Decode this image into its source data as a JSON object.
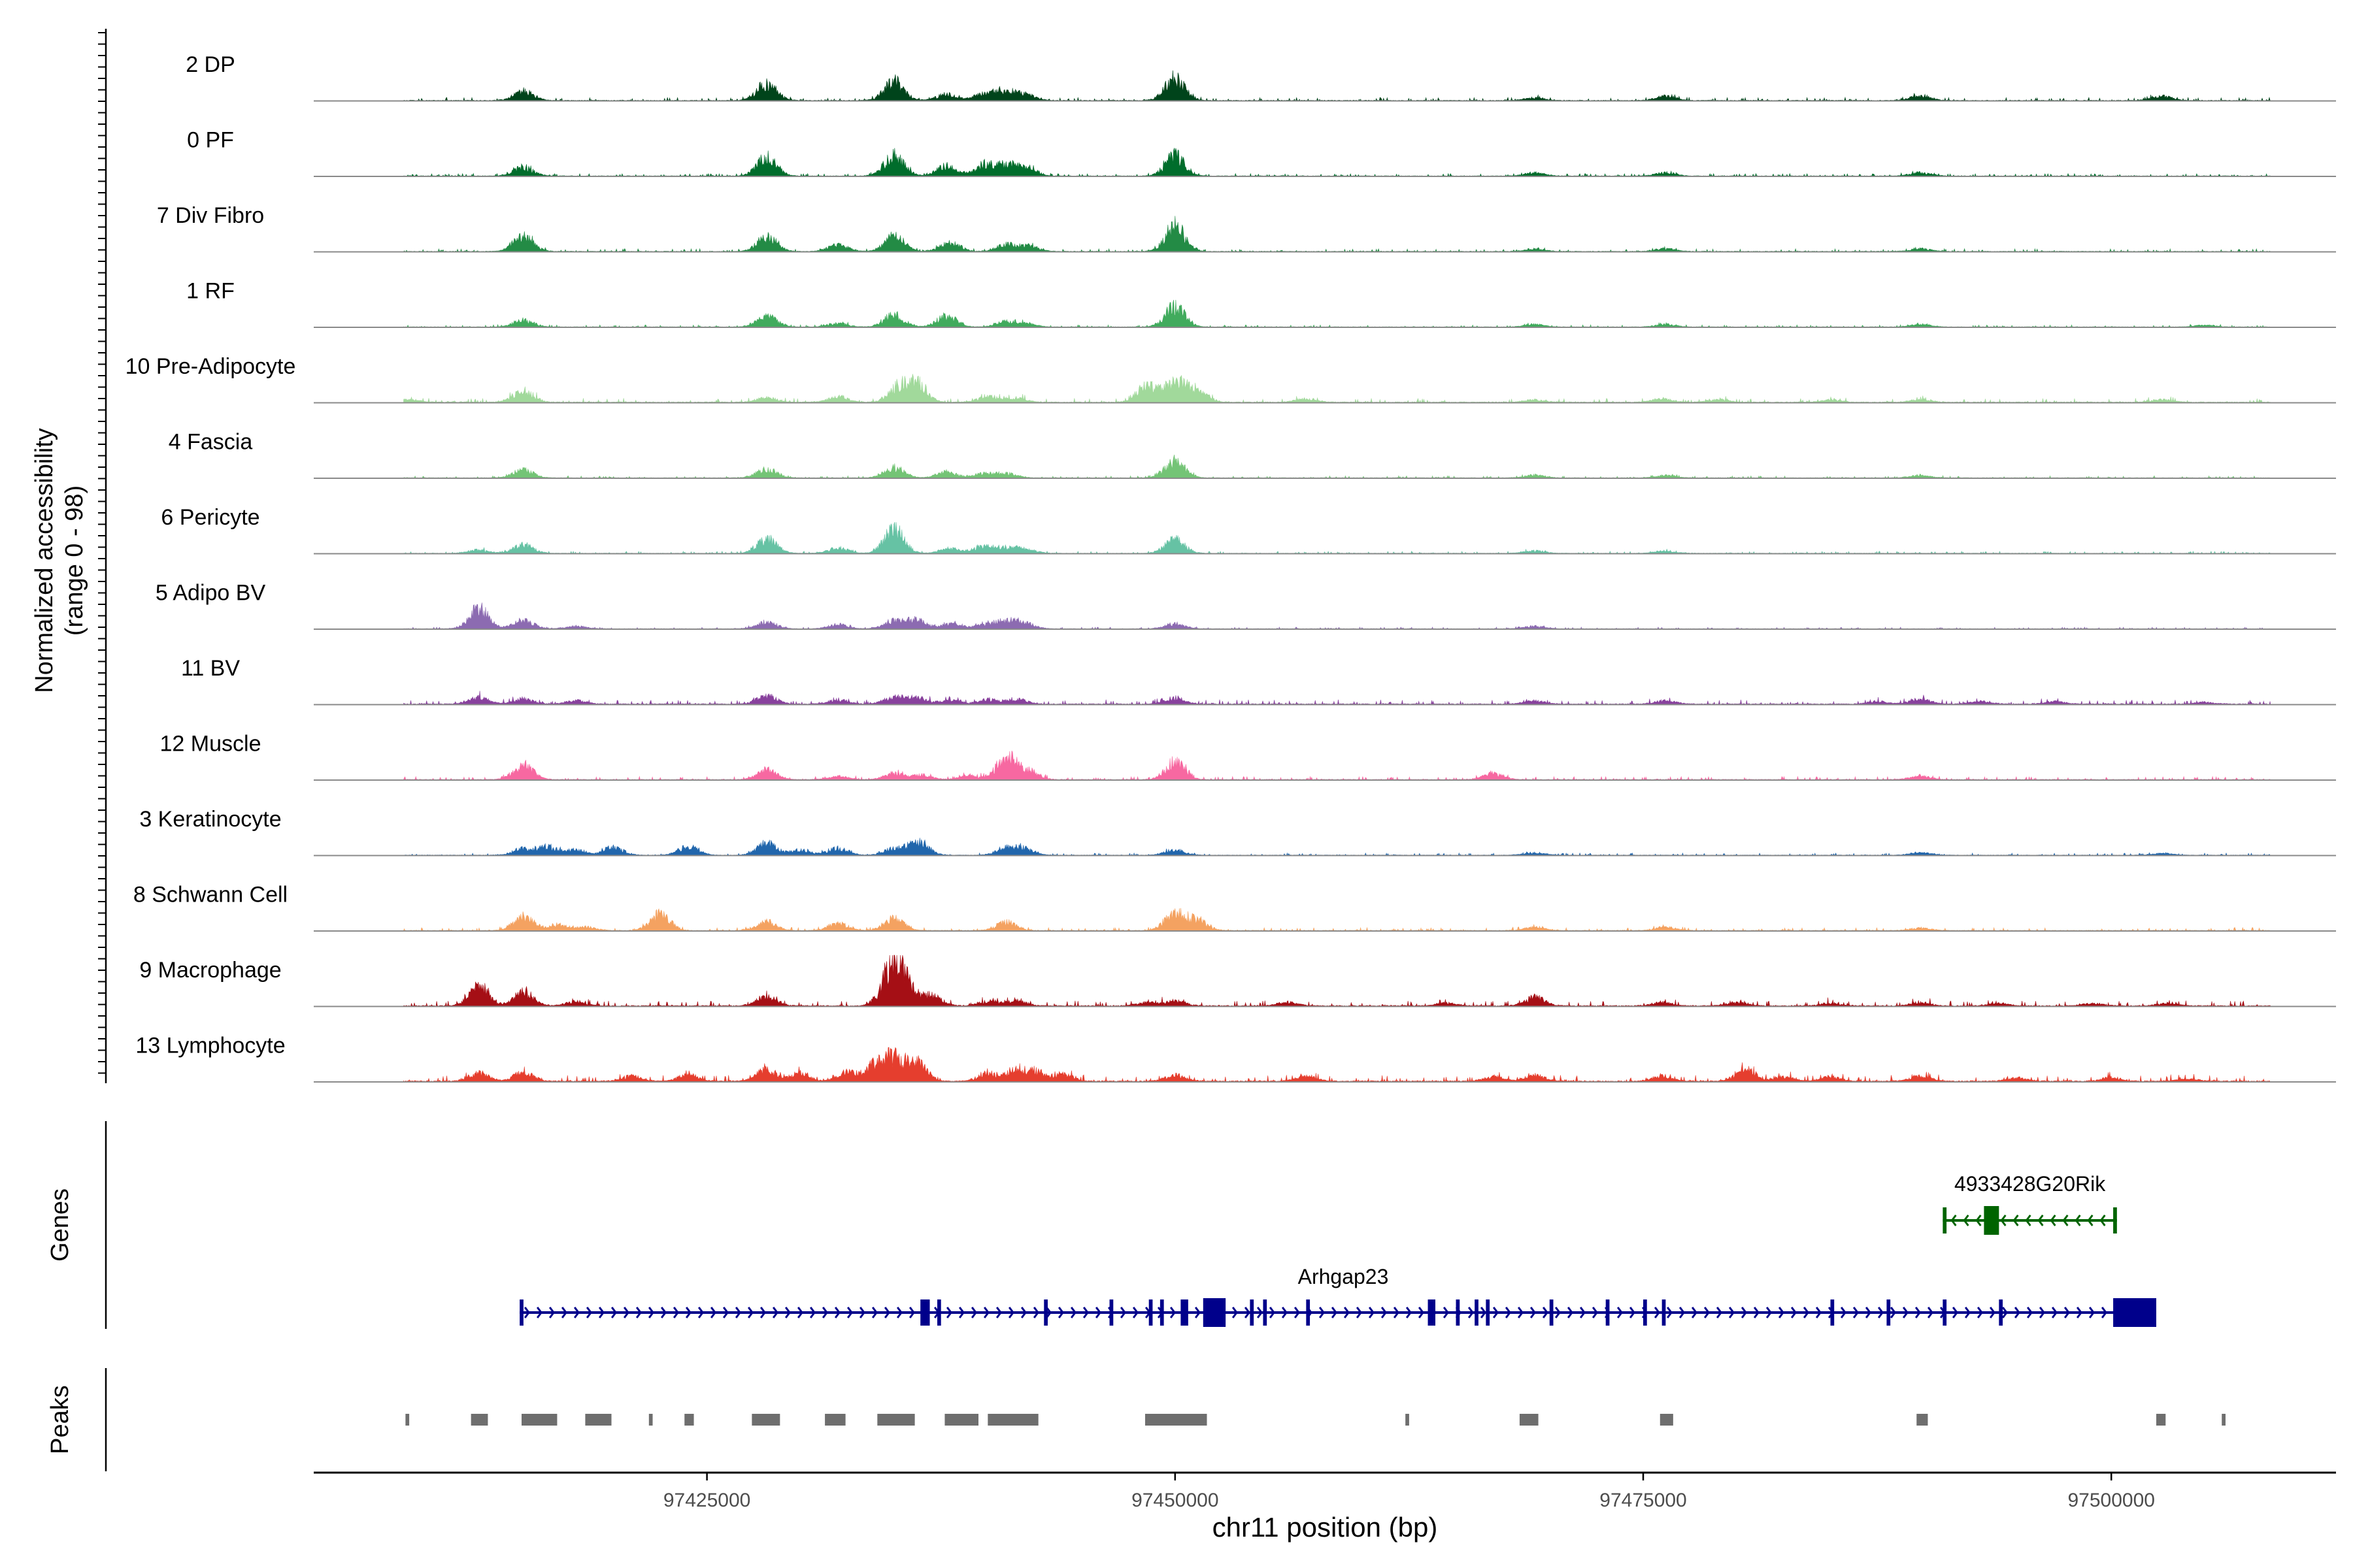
{
  "chart_data": {
    "type": "area",
    "title": "",
    "xlabel": "chr11 position (bp)",
    "ylabel": "Normalized accessibility",
    "ylabel_range": "(range 0 - 98)",
    "xlim": [
      97404000,
      97512000
    ],
    "ylim": [
      0,
      98
    ],
    "xticks": [
      97425000,
      97450000,
      97475000,
      97500000
    ],
    "xtick_labels": [
      "97425000",
      "97450000",
      "97475000",
      "97500000"
    ],
    "genes_label": "Genes",
    "peaks_label": "Peaks",
    "tracks": [
      {
        "name": "2 DP",
        "color": "#00441b",
        "noise": 1.5,
        "seed": 11,
        "peaks": [
          [
            97415200,
            11
          ],
          [
            97428200,
            20
          ],
          [
            97435000,
            22
          ],
          [
            97437800,
            7
          ],
          [
            97439800,
            8
          ],
          [
            97441000,
            10
          ],
          [
            97442000,
            6
          ],
          [
            97450000,
            26
          ],
          [
            97469200,
            3
          ],
          [
            97476200,
            5
          ],
          [
            97489800,
            6
          ],
          [
            97502700,
            5
          ]
        ]
      },
      {
        "name": "0 PF",
        "color": "#006d2c",
        "noise": 1.2,
        "seed": 23,
        "peaks": [
          [
            97415200,
            10
          ],
          [
            97428200,
            22
          ],
          [
            97435000,
            24
          ],
          [
            97437800,
            12
          ],
          [
            97439800,
            12
          ],
          [
            97441000,
            12
          ],
          [
            97442000,
            10
          ],
          [
            97450000,
            24
          ],
          [
            97469200,
            4
          ],
          [
            97476200,
            4
          ],
          [
            97489800,
            4
          ]
        ]
      },
      {
        "name": "7 Div Fibro",
        "color": "#238b45",
        "noise": 1.3,
        "seed": 37,
        "peaks": [
          [
            97415200,
            18
          ],
          [
            97428200,
            17
          ],
          [
            97432000,
            8
          ],
          [
            97435000,
            18
          ],
          [
            97438000,
            10
          ],
          [
            97441000,
            8
          ],
          [
            97442200,
            6
          ],
          [
            97450000,
            30
          ],
          [
            97469200,
            3
          ],
          [
            97476200,
            3
          ],
          [
            97489800,
            3
          ]
        ]
      },
      {
        "name": "1 RF",
        "color": "#41ab5d",
        "noise": 1.0,
        "seed": 41,
        "peaks": [
          [
            97415200,
            8
          ],
          [
            97428200,
            12
          ],
          [
            97432000,
            4
          ],
          [
            97435000,
            14
          ],
          [
            97437800,
            13
          ],
          [
            97441000,
            6
          ],
          [
            97442000,
            4
          ],
          [
            97450000,
            24
          ],
          [
            97469200,
            3
          ],
          [
            97476200,
            3
          ],
          [
            97489800,
            3
          ],
          [
            97505000,
            2
          ]
        ]
      },
      {
        "name": "10 Pre-Adipocyte",
        "color": "#a1d99b",
        "noise": 2.0,
        "seed": 53,
        "peaks": [
          [
            97409000,
            4
          ],
          [
            97415200,
            14
          ],
          [
            97428200,
            5
          ],
          [
            97432000,
            6
          ],
          [
            97435200,
            18
          ],
          [
            97436200,
            22
          ],
          [
            97440000,
            7
          ],
          [
            97441500,
            5
          ],
          [
            97448500,
            20
          ],
          [
            97450000,
            24
          ],
          [
            97451200,
            14
          ],
          [
            97457000,
            4
          ],
          [
            97469200,
            3
          ],
          [
            97476000,
            4
          ],
          [
            97479000,
            3
          ],
          [
            97485000,
            3
          ],
          [
            97489800,
            3
          ],
          [
            97502700,
            3
          ]
        ]
      },
      {
        "name": "4 Fascia",
        "color": "#74c476",
        "noise": 1.0,
        "seed": 61,
        "peaks": [
          [
            97415200,
            9
          ],
          [
            97428200,
            10
          ],
          [
            97435000,
            12
          ],
          [
            97437800,
            7
          ],
          [
            97439800,
            5
          ],
          [
            97441000,
            5
          ],
          [
            97450000,
            20
          ],
          [
            97469200,
            3
          ],
          [
            97476200,
            3
          ],
          [
            97489800,
            3
          ]
        ]
      },
      {
        "name": "6 Pericyte",
        "color": "#66c2a4",
        "noise": 1.0,
        "seed": 71,
        "peaks": [
          [
            97412800,
            4
          ],
          [
            97415200,
            10
          ],
          [
            97428200,
            17
          ],
          [
            97432000,
            6
          ],
          [
            97435000,
            28
          ],
          [
            97438000,
            6
          ],
          [
            97439800,
            8
          ],
          [
            97441000,
            6
          ],
          [
            97442000,
            5
          ],
          [
            97450000,
            16
          ],
          [
            97469200,
            3
          ],
          [
            97476200,
            3
          ]
        ]
      },
      {
        "name": "5 Adipo BV",
        "color": "#8c6bb1",
        "noise": 0.8,
        "seed": 83,
        "peaks": [
          [
            97412800,
            24
          ],
          [
            97415200,
            10
          ],
          [
            97418000,
            3
          ],
          [
            97428200,
            8
          ],
          [
            97432000,
            5
          ],
          [
            97435000,
            10
          ],
          [
            97436200,
            10
          ],
          [
            97438000,
            6
          ],
          [
            97439800,
            6
          ],
          [
            97441000,
            9
          ],
          [
            97442000,
            6
          ],
          [
            97450000,
            6
          ],
          [
            97469200,
            3
          ]
        ]
      },
      {
        "name": "11 BV",
        "color": "#88419d",
        "noise": 2.2,
        "seed": 97,
        "peaks": [
          [
            97412800,
            8
          ],
          [
            97415200,
            6
          ],
          [
            97418000,
            4
          ],
          [
            97428200,
            10
          ],
          [
            97432000,
            5
          ],
          [
            97435000,
            8
          ],
          [
            97436200,
            7
          ],
          [
            97438000,
            5
          ],
          [
            97440000,
            5
          ],
          [
            97441500,
            6
          ],
          [
            97450000,
            7
          ],
          [
            97469200,
            4
          ],
          [
            97476200,
            4
          ],
          [
            97487500,
            3
          ],
          [
            97489800,
            6
          ],
          [
            97493000,
            3
          ],
          [
            97497000,
            3
          ],
          [
            97505000,
            2
          ]
        ]
      },
      {
        "name": "12 Muscle",
        "color": "#f768a1",
        "noise": 1.5,
        "seed": 103,
        "peaks": [
          [
            97415200,
            18
          ],
          [
            97428200,
            12
          ],
          [
            97432000,
            4
          ],
          [
            97435000,
            7
          ],
          [
            97436500,
            5
          ],
          [
            97439000,
            5
          ],
          [
            97441000,
            26
          ],
          [
            97442200,
            10
          ],
          [
            97450000,
            20
          ],
          [
            97467000,
            7
          ],
          [
            97489800,
            4
          ]
        ]
      },
      {
        "name": "3 Keratinocyte",
        "color": "#2166ac",
        "noise": 1.0,
        "seed": 113,
        "peaks": [
          [
            97415200,
            8
          ],
          [
            97416500,
            9
          ],
          [
            97418000,
            6
          ],
          [
            97420000,
            9
          ],
          [
            97424000,
            10
          ],
          [
            97428200,
            14
          ],
          [
            97430000,
            6
          ],
          [
            97432000,
            8
          ],
          [
            97435000,
            8
          ],
          [
            97436300,
            16
          ],
          [
            97441000,
            8
          ],
          [
            97442000,
            7
          ],
          [
            97450000,
            6
          ],
          [
            97469200,
            3
          ],
          [
            97489800,
            3
          ],
          [
            97502700,
            2
          ]
        ]
      },
      {
        "name": "8 Schwann Cell",
        "color": "#f4a261",
        "noise": 1.5,
        "seed": 127,
        "peaks": [
          [
            97415200,
            16
          ],
          [
            97417000,
            6
          ],
          [
            97418500,
            4
          ],
          [
            97422500,
            19
          ],
          [
            97428200,
            10
          ],
          [
            97432000,
            8
          ],
          [
            97435000,
            14
          ],
          [
            97441000,
            10
          ],
          [
            97450000,
            22
          ],
          [
            97451200,
            12
          ],
          [
            97469200,
            4
          ],
          [
            97476200,
            4
          ],
          [
            97489800,
            3
          ]
        ]
      },
      {
        "name": "9 Macrophage",
        "color": "#a50f15",
        "noise": 2.5,
        "seed": 131,
        "peaks": [
          [
            97412800,
            22
          ],
          [
            97415200,
            16
          ],
          [
            97418000,
            5
          ],
          [
            97428200,
            10
          ],
          [
            97434800,
            38
          ],
          [
            97435500,
            28
          ],
          [
            97437000,
            12
          ],
          [
            97440000,
            5
          ],
          [
            97441500,
            6
          ],
          [
            97448500,
            4
          ],
          [
            97450000,
            6
          ],
          [
            97456000,
            4
          ],
          [
            97464500,
            3
          ],
          [
            97469200,
            10
          ],
          [
            97476000,
            4
          ],
          [
            97480000,
            4
          ],
          [
            97485000,
            3
          ],
          [
            97489800,
            4
          ],
          [
            97494000,
            3
          ],
          [
            97499000,
            3
          ],
          [
            97503000,
            3
          ]
        ]
      },
      {
        "name": "13 Lymphocyte",
        "color": "#e53e2e",
        "noise": 3.0,
        "seed": 149,
        "peaks": [
          [
            97412800,
            10
          ],
          [
            97415200,
            10
          ],
          [
            97421000,
            6
          ],
          [
            97424000,
            8
          ],
          [
            97428200,
            14
          ],
          [
            97430000,
            8
          ],
          [
            97432500,
            10
          ],
          [
            97434000,
            18
          ],
          [
            97435000,
            26
          ],
          [
            97436200,
            22
          ],
          [
            97440000,
            9
          ],
          [
            97441500,
            12
          ],
          [
            97442500,
            10
          ],
          [
            97444000,
            8
          ],
          [
            97450000,
            7
          ],
          [
            97457000,
            6
          ],
          [
            97467000,
            5
          ],
          [
            97469200,
            7
          ],
          [
            97476000,
            6
          ],
          [
            97480500,
            14
          ],
          [
            97482500,
            5
          ],
          [
            97485000,
            5
          ],
          [
            97489800,
            6
          ],
          [
            97495000,
            4
          ],
          [
            97500000,
            4
          ],
          [
            97504000,
            3
          ]
        ]
      }
    ],
    "genes": [
      {
        "name": "4933428G20Rik",
        "color": "#006400",
        "strand": "-",
        "start": 97491000,
        "end": 97500300,
        "exons": [
          [
            97491000,
            97491200
          ],
          [
            97493200,
            97494000
          ],
          [
            97500100,
            97500300
          ]
        ]
      },
      {
        "name": "Arhgap23",
        "color": "#00008b",
        "strand": "+",
        "start": 97415000,
        "end": 97502400,
        "exons": [
          [
            97415000,
            97415200
          ],
          [
            97436400,
            97436900
          ],
          [
            97437300,
            97437500
          ],
          [
            97443000,
            97443200
          ],
          [
            97446500,
            97446700
          ],
          [
            97448600,
            97448800
          ],
          [
            97449200,
            97449400
          ],
          [
            97450300,
            97450700
          ],
          [
            97451500,
            97452700
          ],
          [
            97454000,
            97454200
          ],
          [
            97454700,
            97454900
          ],
          [
            97457000,
            97457200
          ],
          [
            97463500,
            97463900
          ],
          [
            97465000,
            97465200
          ],
          [
            97466000,
            97466200
          ],
          [
            97466600,
            97466800
          ],
          [
            97470000,
            97470200
          ],
          [
            97473000,
            97473200
          ],
          [
            97475000,
            97475200
          ],
          [
            97476000,
            97476200
          ],
          [
            97485000,
            97485200
          ],
          [
            97488000,
            97488200
          ],
          [
            97491000,
            97491200
          ],
          [
            97494000,
            97494200
          ],
          [
            97500100,
            97502400
          ]
        ]
      }
    ],
    "peaks": [
      [
        97408900,
        97409100
      ],
      [
        97412400,
        97413300
      ],
      [
        97415100,
        97417000
      ],
      [
        97418500,
        97419900
      ],
      [
        97421900,
        97422100
      ],
      [
        97423800,
        97424300
      ],
      [
        97427400,
        97428900
      ],
      [
        97431300,
        97432400
      ],
      [
        97434100,
        97436100
      ],
      [
        97437700,
        97439500
      ],
      [
        97440000,
        97442700
      ],
      [
        97448400,
        97451700
      ],
      [
        97462300,
        97462500
      ],
      [
        97468400,
        97469400
      ],
      [
        97475900,
        97476600
      ],
      [
        97489600,
        97490200
      ],
      [
        97502400,
        97502900
      ],
      [
        97505900,
        97506100
      ]
    ]
  }
}
